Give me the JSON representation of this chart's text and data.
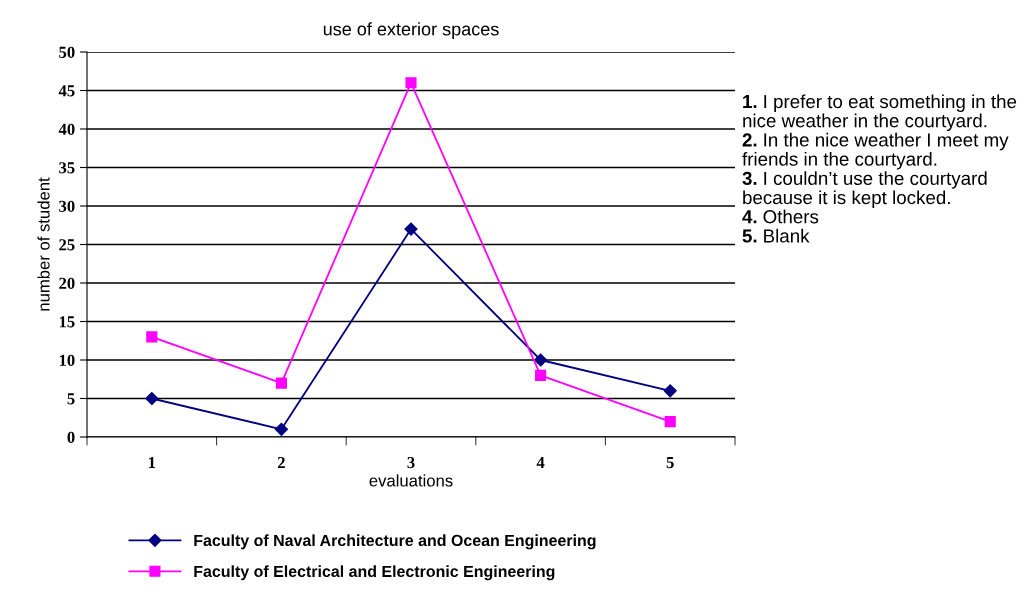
{
  "chart_data": {
    "type": "line",
    "title": "use of exterior spaces",
    "xlabel": "evaluations",
    "ylabel": "number of student",
    "categories": [
      "1",
      "2",
      "3",
      "4",
      "5"
    ],
    "series": [
      {
        "name": "Faculty of Naval Architecture and Ocean Engineering",
        "color": "#000080",
        "marker": "diamond",
        "values": [
          5,
          1,
          27,
          10,
          6
        ]
      },
      {
        "name": "Faculty of Electrical and Electronic Engineering",
        "color": "#ff00ff",
        "marker": "square",
        "values": [
          13,
          7,
          46,
          8,
          2
        ]
      }
    ],
    "ylim": [
      0,
      50
    ],
    "yticks": [
      0,
      5,
      10,
      15,
      20,
      25,
      30,
      35,
      40,
      45,
      50
    ],
    "grid": "y",
    "legend": "bottom",
    "line_style": "solid",
    "annotations": [
      "1. I prefer to eat something in the nice weather in the courtyard.",
      "2. In the nice weather I meet my friends in the courtyard.",
      "3. I couldn’t use the courtyard because it is kept locked.",
      "4. Others",
      "5. Blank"
    ]
  }
}
